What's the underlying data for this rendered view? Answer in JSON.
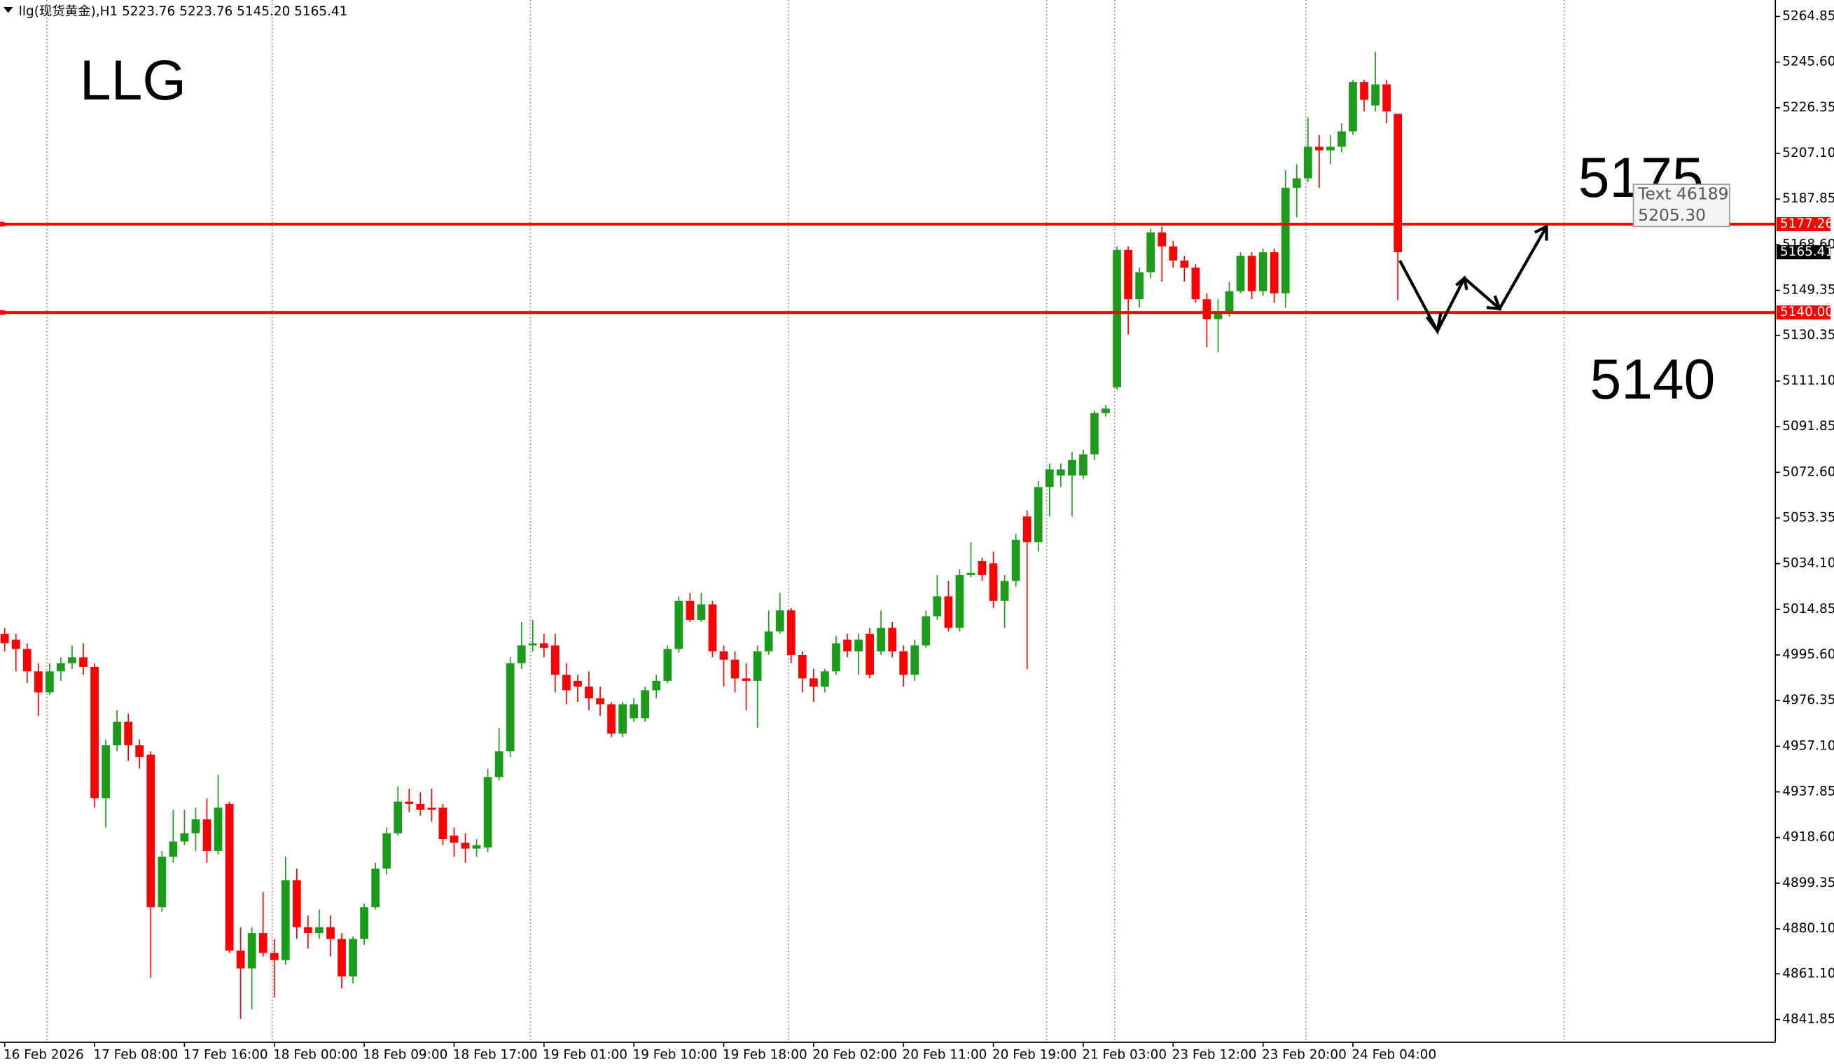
{
  "chart_data": {
    "type": "candlestick",
    "header": "llg(现货黄金),H1  5223.76 5223.76 5145.20 5165.41",
    "annotations": [
      "LLG",
      "5175",
      "5140"
    ],
    "tooltip": [
      "Text 46189",
      "5205.30"
    ],
    "up_color": "#1a9c1a",
    "down_color": "#ff0000",
    "hline_color": "#ff0000",
    "hlines": [
      {
        "value": 5177.26,
        "label": "5177.26"
      },
      {
        "value": 5140,
        "label": "5140.00"
      }
    ],
    "last_price": 5165.41,
    "ylim": [
      4832.24,
      5271.8
    ],
    "yticks": [
      5264.85,
      {
        "value": 5245.6,
        "label": "5245.60"
      },
      5226.35,
      {
        "value": 5207.1,
        "label": "5207.10"
      },
      5187.85,
      {
        "value": 5168.6,
        "label": "5168.60"
      },
      5149.35,
      5130.35,
      {
        "value": 5111.1,
        "label": "5111.10"
      },
      5091.85,
      {
        "value": 5072.6,
        "label": "5072.60"
      },
      5053.35,
      {
        "value": 5034.1,
        "label": "5034.10"
      },
      5014.85,
      {
        "value": 4995.6,
        "label": "4995.60"
      },
      4976.35,
      {
        "value": 4957.1,
        "label": "4957.10"
      },
      4937.85,
      {
        "value": 4918.6,
        "label": "4918.60"
      },
      4899.35,
      {
        "value": 4880.1,
        "label": "4880.10"
      },
      {
        "value": 4861.1,
        "label": "4861.10"
      },
      4841.85
    ],
    "categories": [
      "16 Feb 2026",
      null,
      null,
      null,
      null,
      null,
      null,
      null,
      "17 Feb 08:00",
      null,
      null,
      null,
      null,
      null,
      null,
      null,
      "17 Feb 16:00",
      null,
      null,
      null,
      null,
      null,
      null,
      null,
      "18 Feb 00:00",
      null,
      null,
      null,
      null,
      null,
      null,
      null,
      "18 Feb 09:00",
      null,
      null,
      null,
      null,
      null,
      null,
      null,
      "18 Feb 17:00",
      null,
      null,
      null,
      null,
      null,
      null,
      null,
      "19 Feb 01:00",
      null,
      null,
      null,
      null,
      null,
      null,
      null,
      "19 Feb 10:00",
      null,
      null,
      null,
      null,
      null,
      null,
      null,
      "19 Feb 18:00",
      null,
      null,
      null,
      null,
      null,
      null,
      null,
      "20 Feb 02:00",
      null,
      null,
      null,
      null,
      null,
      null,
      null,
      "20 Feb 11:00",
      null,
      null,
      null,
      null,
      null,
      null,
      null,
      "20 Feb 19:00",
      null,
      null,
      null,
      null,
      null,
      null,
      null,
      "21 Feb 03:00",
      null,
      null,
      null,
      null,
      null,
      null,
      null,
      "23 Feb 12:00",
      null,
      null,
      null,
      null,
      null,
      null,
      null,
      "23 Feb 20:00",
      null,
      null,
      null,
      null,
      null,
      null,
      null,
      "24 Feb 04:00",
      null,
      null,
      null,
      null
    ],
    "open": [
      5004.5,
      5002.0,
      4998.1,
      4988.7,
      4979.8,
      4988.7,
      4992.1,
      4994.6,
      4990.6,
      4935.2,
      4957.5,
      4967.4,
      4957.5,
      4953.5,
      4889.2,
      4910.5,
      4916.9,
      4920.4,
      4926.3,
      4912.9,
      4932.7,
      4870.9,
      4863.4,
      4878.3,
      4869.9,
      4866.9,
      4900.6,
      4880.8,
      4878.3,
      4880.8,
      4875.8,
      4860.0,
      4875.8,
      4889.2,
      4905.5,
      4920.4,
      4933.7,
      4932.7,
      4931.2,
      4931.2,
      4919.4,
      4916.4,
      4913.9,
      4914.4,
      4944.1,
      4955.0,
      4992.1,
      4999.6,
      5000.5,
      4999.6,
      4987.2,
      4984.7,
      4982.2,
      4977.3,
      4974.8,
      4962.4,
      4968.9,
      4968.9,
      4980.7,
      4984.7,
      4998.1,
      5018.4,
      5010.4,
      5016.9,
      4997.1,
      4993.6,
      4985.7,
      4984.7,
      4997.1,
      5005.5,
      5014.4,
      4995.6,
      4985.7,
      4982.2,
      4988.7,
      5002.0,
      4997.1,
      5004.5,
      4997.1,
      5007.0,
      4997.1,
      4987.2,
      4999.6,
      5011.9,
      5020.3,
      5007.0,
      5029.3,
      5035.2,
      5034.2,
      5018.4,
      5026.8,
      5054.0,
      5043.1,
      5066.4,
      5071.3,
      5071.3,
      5071.3,
      5080.2,
      5097.6,
      5108.5,
      5166.4,
      5145.6,
      5157.0,
      5173.8,
      5167.9,
      5161.9,
      5158.9,
      5145.6,
      5137.2,
      5140.6,
      5149.0,
      5163.9,
      5149.0,
      5165.4,
      5148.1,
      5192.6,
      5196.6,
      5209.9,
      5208.4,
      5209.9,
      5216.4,
      5237.2,
      5227.3,
      5236.2,
      5223.76
    ],
    "high": [
      5007.0,
      5004.5,
      5000.5,
      4992.1,
      4992.1,
      4994.6,
      4999.6,
      5000.5,
      4992.1,
      4960.0,
      4972.3,
      4970.8,
      4960.0,
      4955.0,
      4912.9,
      4930.3,
      4930.3,
      4931.2,
      4935.2,
      4945.1,
      4933.7,
      4880.8,
      4880.8,
      4895.6,
      4875.8,
      4910.5,
      4905.5,
      4885.7,
      4888.2,
      4885.7,
      4878.3,
      4876.8,
      4890.7,
      4908.0,
      4922.8,
      4940.2,
      4939.2,
      4937.7,
      4939.2,
      4932.7,
      4922.8,
      4920.4,
      4917.9,
      4947.6,
      4964.9,
      4994.6,
      5009.5,
      5010.4,
      5004.5,
      5004.5,
      4992.1,
      4987.2,
      4988.7,
      4982.2,
      4975.8,
      4975.8,
      4977.3,
      4982.2,
      4987.2,
      4999.6,
      5020.3,
      5021.8,
      5021.8,
      5018.4,
      4999.6,
      4997.1,
      4992.1,
      4999.6,
      5014.4,
      5021.8,
      5015.4,
      4997.1,
      4989.7,
      4989.7,
      5003.5,
      5004.5,
      5004.5,
      5007.0,
      5014.4,
      5009.5,
      4999.6,
      5002.0,
      5014.4,
      5029.3,
      5026.8,
      5031.7,
      5043.1,
      5036.7,
      5039.2,
      5029.3,
      5046.6,
      5056.5,
      5068.9,
      5076.3,
      5076.3,
      5081.2,
      5082.2,
      5098.6,
      5101.0,
      5167.9,
      5167.9,
      5158.9,
      5175.3,
      5176.3,
      5170.3,
      5163.9,
      5160.4,
      5148.1,
      5145.6,
      5153.0,
      5165.4,
      5165.4,
      5166.9,
      5166.9,
      5200.0,
      5202.5,
      5222.3,
      5214.9,
      5214.9,
      5219.8,
      5238.1,
      5238.1,
      5250.0,
      5238.1,
      5223.76
    ],
    "low": [
      4997.1,
      4988.7,
      4983.7,
      4969.9,
      4978.8,
      4984.7,
      4989.7,
      4987.2,
      4931.2,
      4922.8,
      4955.0,
      4951.0,
      4947.6,
      4859.5,
      4887.2,
      4908.0,
      4915.4,
      4912.9,
      4908.0,
      4911.4,
      4869.9,
      4842.1,
      4846.1,
      4868.4,
      4851.1,
      4864.9,
      4875.8,
      4871.8,
      4875.8,
      4868.4,
      4855.0,
      4857.0,
      4873.3,
      4888.2,
      4903.0,
      4919.4,
      4929.3,
      4927.8,
      4925.3,
      4915.4,
      4910.5,
      4908.0,
      4910.5,
      4912.4,
      4942.6,
      4952.5,
      4989.7,
      4997.1,
      4994.6,
      4979.8,
      4974.8,
      4975.8,
      4972.3,
      4969.9,
      4960.9,
      4960.9,
      4967.4,
      4967.4,
      4977.3,
      4983.7,
      4996.6,
      5009.5,
      5009.5,
      4994.6,
      4982.2,
      4979.8,
      4972.3,
      4964.9,
      4995.6,
      5004.5,
      4992.1,
      4979.8,
      4975.8,
      4979.8,
      4987.2,
      4994.6,
      4987.2,
      4985.7,
      4995.6,
      4994.6,
      4982.2,
      4984.7,
      4998.6,
      5010.4,
      5005.5,
      5005.5,
      5028.3,
      5026.8,
      5015.4,
      5007.0,
      5024.3,
      4989.7,
      5039.2,
      5054.0,
      5066.4,
      5054.0,
      5069.8,
      5077.8,
      5096.1,
      5107.5,
      5130.7,
      5142.1,
      5154.5,
      5153.0,
      5158.9,
      5153.0,
      5144.1,
      5125.3,
      5123.3,
      5138.2,
      5148.1,
      5145.6,
      5147.1,
      5144.1,
      5142.1,
      5180.2,
      5195.1,
      5192.6,
      5202.5,
      5207.5,
      5214.9,
      5224.8,
      5224.8,
      5219.8,
      5145.2
    ],
    "close": [
      5000.5,
      4998.1,
      4988.7,
      4979.8,
      4988.7,
      4992.1,
      4994.6,
      4990.6,
      4935.2,
      4957.5,
      4967.4,
      4957.5,
      4952.5,
      4889.2,
      4910.5,
      4916.9,
      4920.4,
      4926.3,
      4912.9,
      4931.2,
      4870.9,
      4863.4,
      4878.3,
      4869.9,
      4866.9,
      4900.6,
      4880.8,
      4878.3,
      4880.8,
      4875.8,
      4860.0,
      4875.8,
      4889.2,
      4905.5,
      4920.4,
      4933.7,
      4932.7,
      4930.3,
      4930.3,
      4917.9,
      4916.4,
      4913.9,
      4915.4,
      4944.1,
      4955.0,
      4992.1,
      4999.6,
      5000.5,
      4998.6,
      4987.2,
      4980.7,
      4982.2,
      4977.3,
      4974.8,
      4962.4,
      4974.8,
      4974.8,
      4980.7,
      4984.7,
      4998.1,
      5018.4,
      5010.4,
      5016.9,
      4997.1,
      4993.6,
      4985.7,
      4984.7,
      4997.1,
      5005.5,
      5014.4,
      4995.6,
      4985.7,
      4982.2,
      4988.7,
      5000.5,
      4997.1,
      5002.0,
      4987.2,
      5007.0,
      4997.1,
      4987.2,
      4999.6,
      5011.9,
      5020.3,
      5007.0,
      5029.3,
      5030.2,
      5029.3,
      5018.4,
      5026.8,
      5044.1,
      5043.1,
      5066.4,
      5073.8,
      5073.8,
      5077.8,
      5080.2,
      5097.6,
      5099.5,
      5166.4,
      5145.6,
      5157.0,
      5173.8,
      5167.9,
      5161.9,
      5158.9,
      5145.6,
      5137.2,
      5140.6,
      5149.0,
      5163.9,
      5149.0,
      5165.4,
      5148.1,
      5192.6,
      5196.6,
      5209.9,
      5208.4,
      5209.9,
      5216.4,
      5237.2,
      5229.7,
      5236.2,
      5224.8,
      5165.41
    ]
  }
}
